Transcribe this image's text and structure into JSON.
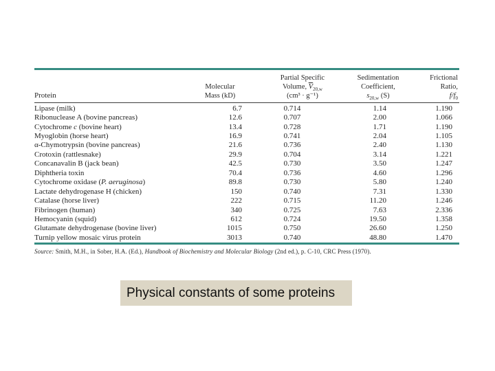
{
  "caption": {
    "text": "Physical constants of some proteins",
    "bg": "#dcd6c5"
  },
  "table": {
    "rule_color": "#368c82",
    "headers": {
      "protein": "Protein",
      "mass_l1": "Molecular",
      "mass_l2": "Mass (kD)",
      "vol_l1": "Partial Specific",
      "vol_l2_pre": "Volume, ",
      "vol_l2_v": "V",
      "vol_l2_sub": "20,w",
      "vol_l3": "(cm³ · g⁻¹)",
      "sed_l1": "Sedimentation",
      "sed_l2": "Coefficient,",
      "sed_l3_s": "s",
      "sed_l3_sub": "20,w",
      "sed_l3_rest": " (S)",
      "fric_l1": "Frictional",
      "fric_l2": "Ratio,",
      "fric_l3_ff": "f/f",
      "fric_l3_sub": "0"
    },
    "rows": [
      {
        "protein_pre": "Lipase (milk)",
        "protein_it": "",
        "protein_post": "",
        "mass": "6.7",
        "volume": "0.714",
        "sedimentation": "1.14",
        "frictional": "1.190"
      },
      {
        "protein_pre": "Ribonuclease A (bovine pancreas)",
        "protein_it": "",
        "protein_post": "",
        "mass": "12.6",
        "volume": "0.707",
        "sedimentation": "2.00",
        "frictional": "1.066"
      },
      {
        "protein_pre": "Cytochrome ",
        "protein_it": "c",
        "protein_post": " (bovine heart)",
        "mass": "13.4",
        "volume": "0.728",
        "sedimentation": "1.71",
        "frictional": "1.190"
      },
      {
        "protein_pre": "Myoglobin (horse heart)",
        "protein_it": "",
        "protein_post": "",
        "mass": "16.9",
        "volume": "0.741",
        "sedimentation": "2.04",
        "frictional": "1.105"
      },
      {
        "protein_pre": "α-Chymotrypsin (bovine pancreas)",
        "protein_it": "",
        "protein_post": "",
        "mass": "21.6",
        "volume": "0.736",
        "sedimentation": "2.40",
        "frictional": "1.130"
      },
      {
        "protein_pre": "Crotoxin (rattlesnake)",
        "protein_it": "",
        "protein_post": "",
        "mass": "29.9",
        "volume": "0.704",
        "sedimentation": "3.14",
        "frictional": "1.221"
      },
      {
        "protein_pre": "Concanavalin B (jack bean)",
        "protein_it": "",
        "protein_post": "",
        "mass": "42.5",
        "volume": "0.730",
        "sedimentation": "3.50",
        "frictional": "1.247"
      },
      {
        "protein_pre": "Diphtheria toxin",
        "protein_it": "",
        "protein_post": "",
        "mass": "70.4",
        "volume": "0.736",
        "sedimentation": "4.60",
        "frictional": "1.296"
      },
      {
        "protein_pre": "Cytochrome oxidase (",
        "protein_it": "P. aeruginosa",
        "protein_post": ")",
        "mass": "89.8",
        "volume": "0.730",
        "sedimentation": "5.80",
        "frictional": "1.240"
      },
      {
        "protein_pre": "Lactate dehydrogenase H (chicken)",
        "protein_it": "",
        "protein_post": "",
        "mass": "150",
        "volume": "0.740",
        "sedimentation": "7.31",
        "frictional": "1.330"
      },
      {
        "protein_pre": "Catalase (horse liver)",
        "protein_it": "",
        "protein_post": "",
        "mass": "222",
        "volume": "0.715",
        "sedimentation": "11.20",
        "frictional": "1.246"
      },
      {
        "protein_pre": "Fibrinogen (human)",
        "protein_it": "",
        "protein_post": "",
        "mass": "340",
        "volume": "0.725",
        "sedimentation": "7.63",
        "frictional": "2.336"
      },
      {
        "protein_pre": "Hemocyanin (squid)",
        "protein_it": "",
        "protein_post": "",
        "mass": "612",
        "volume": "0.724",
        "sedimentation": "19.50",
        "frictional": "1.358"
      },
      {
        "protein_pre": "Glutamate dehydrogenase (bovine liver)",
        "protein_it": "",
        "protein_post": "",
        "mass": "1015",
        "volume": "0.750",
        "sedimentation": "26.60",
        "frictional": "1.250"
      },
      {
        "protein_pre": "Turnip yellow mosaic virus protein",
        "protein_it": "",
        "protein_post": "",
        "mass": "3013",
        "volume": "0.740",
        "sedimentation": "48.80",
        "frictional": "1.470"
      }
    ]
  },
  "source": {
    "label": "Source:",
    "part1": " Smith, M.H., in Sober, H.A. (Ed.), ",
    "book": "Handbook of Biochemistry and Molecular Biology",
    "part2": " (2nd ed.), p. C-10, CRC Press (1970)."
  }
}
